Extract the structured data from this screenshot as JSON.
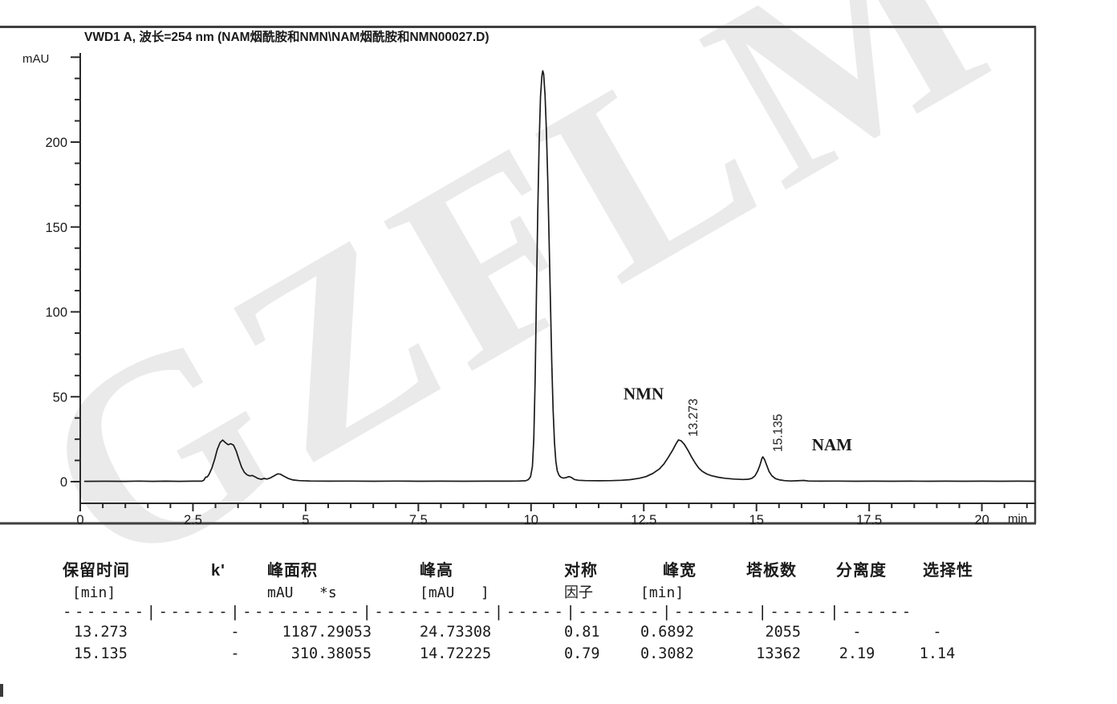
{
  "watermark": "GZFLM",
  "chart_data": {
    "type": "line",
    "title": "VWD1 A, 波长=254 nm (NAM烟酰胺和NMN\\NAM烟酰胺和NMN00027.D)",
    "ylabel": "mAU",
    "xlabel": "min",
    "x_axis": {
      "range": [
        0,
        21.2
      ],
      "minor_step": 0.5,
      "ticks": [
        {
          "v": 0,
          "label": "0"
        },
        {
          "v": 2.5,
          "label": "2.5"
        },
        {
          "v": 5,
          "label": "5"
        },
        {
          "v": 7.5,
          "label": "7.5"
        },
        {
          "v": 10,
          "label": "10"
        },
        {
          "v": 12.5,
          "label": "12.5"
        },
        {
          "v": 15,
          "label": "15"
        },
        {
          "v": 17.5,
          "label": "17.5"
        },
        {
          "v": 20,
          "label": "20"
        }
      ]
    },
    "y_axis": {
      "range": [
        0,
        250
      ],
      "minor_step": 12.5,
      "ticks": [
        {
          "v": 0,
          "label": "0"
        },
        {
          "v": 50,
          "label": "50"
        },
        {
          "v": 100,
          "label": "100"
        },
        {
          "v": 150,
          "label": "150"
        },
        {
          "v": 200,
          "label": "200"
        }
      ]
    },
    "peaks": [
      {
        "name": "NMN",
        "rt_min": 13.273,
        "height_mau": 24.73308
      },
      {
        "name": "NAM",
        "rt_min": 15.135,
        "height_mau": 14.72225
      },
      {
        "name": "solvent-front",
        "rt_min": 3.16,
        "height_mau": 24.5
      },
      {
        "name": "main-peak",
        "rt_min": 10.26,
        "height_mau": 242
      }
    ],
    "annotations": [
      {
        "text": "NMN",
        "t": 12.05,
        "mau": 48.5,
        "rotated": false,
        "style": "compound"
      },
      {
        "text": "13.273",
        "t": 13.69,
        "mau": 26.5,
        "rotated": true,
        "style": "rt"
      },
      {
        "text": "15.135",
        "t": 15.57,
        "mau": 17.5,
        "rotated": true,
        "style": "rt"
      },
      {
        "text": "NAM",
        "t": 16.23,
        "mau": 18.5,
        "rotated": false,
        "style": "compound"
      }
    ],
    "colors": {
      "trace": "#1a1a1a",
      "axis": "#2a2a2a",
      "border": "#3f3f3f",
      "compound_label": "#7a1420"
    },
    "trace": [
      [
        0.1,
        0.2
      ],
      [
        0.6,
        0.25
      ],
      [
        1.0,
        0.2
      ],
      [
        1.3,
        0.35
      ],
      [
        1.6,
        0.2
      ],
      [
        1.9,
        0.3
      ],
      [
        2.2,
        0.2
      ],
      [
        2.5,
        0.3
      ],
      [
        2.7,
        0.3
      ],
      [
        2.74,
        0.8
      ],
      [
        2.78,
        2.6
      ],
      [
        2.82,
        2.8
      ],
      [
        2.86,
        4.5
      ],
      [
        2.92,
        8
      ],
      [
        2.98,
        13
      ],
      [
        3.04,
        19
      ],
      [
        3.1,
        23
      ],
      [
        3.16,
        24.5
      ],
      [
        3.22,
        23
      ],
      [
        3.28,
        21.8
      ],
      [
        3.34,
        22.3
      ],
      [
        3.4,
        21.5
      ],
      [
        3.46,
        18
      ],
      [
        3.52,
        13
      ],
      [
        3.58,
        8.5
      ],
      [
        3.64,
        5.5
      ],
      [
        3.7,
        4
      ],
      [
        3.76,
        3.4
      ],
      [
        3.82,
        3.6
      ],
      [
        3.88,
        2.8
      ],
      [
        3.95,
        1.8
      ],
      [
        4.02,
        1.4
      ],
      [
        4.08,
        1.9
      ],
      [
        4.14,
        1.5
      ],
      [
        4.22,
        2.2
      ],
      [
        4.3,
        3.4
      ],
      [
        4.38,
        4.6
      ],
      [
        4.44,
        4.4
      ],
      [
        4.52,
        3.2
      ],
      [
        4.62,
        1.8
      ],
      [
        4.72,
        1.0
      ],
      [
        4.85,
        0.6
      ],
      [
        5.1,
        0.4
      ],
      [
        5.5,
        0.3
      ],
      [
        6.0,
        0.35
      ],
      [
        6.5,
        0.25
      ],
      [
        7.0,
        0.35
      ],
      [
        7.5,
        0.25
      ],
      [
        8.0,
        0.3
      ],
      [
        8.5,
        0.25
      ],
      [
        9.0,
        0.3
      ],
      [
        9.4,
        0.3
      ],
      [
        9.7,
        0.35
      ],
      [
        9.88,
        0.5
      ],
      [
        9.94,
        1.2
      ],
      [
        9.99,
        3
      ],
      [
        10.03,
        9
      ],
      [
        10.06,
        25
      ],
      [
        10.09,
        60
      ],
      [
        10.12,
        110
      ],
      [
        10.15,
        160
      ],
      [
        10.18,
        200
      ],
      [
        10.21,
        227
      ],
      [
        10.24,
        239
      ],
      [
        10.26,
        242
      ],
      [
        10.28,
        240
      ],
      [
        10.31,
        228
      ],
      [
        10.34,
        207
      ],
      [
        10.37,
        178
      ],
      [
        10.4,
        142
      ],
      [
        10.43,
        105
      ],
      [
        10.46,
        70
      ],
      [
        10.49,
        42
      ],
      [
        10.52,
        23
      ],
      [
        10.55,
        12
      ],
      [
        10.58,
        6.5
      ],
      [
        10.62,
        3.8
      ],
      [
        10.66,
        2.6
      ],
      [
        10.72,
        2.1
      ],
      [
        10.78,
        2.4
      ],
      [
        10.84,
        3.0
      ],
      [
        10.9,
        2.4
      ],
      [
        10.96,
        1.3
      ],
      [
        11.05,
        0.8
      ],
      [
        11.2,
        0.6
      ],
      [
        11.5,
        0.5
      ],
      [
        11.8,
        0.6
      ],
      [
        12.0,
        0.8
      ],
      [
        12.2,
        1.2
      ],
      [
        12.4,
        2.0
      ],
      [
        12.55,
        3.0
      ],
      [
        12.7,
        4.8
      ],
      [
        12.85,
        7.5
      ],
      [
        12.95,
        10.5
      ],
      [
        13.05,
        14.5
      ],
      [
        13.15,
        19
      ],
      [
        13.22,
        22.5
      ],
      [
        13.27,
        24.6
      ],
      [
        13.33,
        24.0
      ],
      [
        13.4,
        22
      ],
      [
        13.48,
        18.5
      ],
      [
        13.56,
        14.5
      ],
      [
        13.64,
        11
      ],
      [
        13.72,
        8
      ],
      [
        13.8,
        6
      ],
      [
        13.9,
        4.5
      ],
      [
        14.0,
        3.5
      ],
      [
        14.15,
        2.6
      ],
      [
        14.3,
        2.0
      ],
      [
        14.5,
        1.5
      ],
      [
        14.7,
        1.3
      ],
      [
        14.82,
        1.4
      ],
      [
        14.9,
        2.0
      ],
      [
        14.97,
        3.5
      ],
      [
        15.03,
        6.5
      ],
      [
        15.08,
        10
      ],
      [
        15.12,
        13.5
      ],
      [
        15.14,
        14.6
      ],
      [
        15.18,
        13
      ],
      [
        15.23,
        9.5
      ],
      [
        15.28,
        6
      ],
      [
        15.34,
        3.5
      ],
      [
        15.42,
        1.8
      ],
      [
        15.52,
        1.0
      ],
      [
        15.62,
        0.6
      ],
      [
        15.75,
        0.4
      ],
      [
        15.9,
        0.5
      ],
      [
        16.05,
        0.7
      ],
      [
        16.15,
        0.4
      ],
      [
        16.4,
        0.3
      ],
      [
        16.8,
        0.35
      ],
      [
        17.2,
        0.25
      ],
      [
        17.6,
        0.3
      ],
      [
        18.0,
        0.25
      ],
      [
        18.4,
        0.3
      ],
      [
        18.8,
        0.25
      ],
      [
        19.2,
        0.3
      ],
      [
        19.6,
        0.25
      ],
      [
        20.0,
        0.3
      ],
      [
        20.4,
        0.25
      ],
      [
        20.8,
        0.3
      ],
      [
        21.18,
        0.25
      ]
    ]
  },
  "table": {
    "headers_row1": [
      "保留时间",
      "k'",
      "峰面积",
      "峰高",
      "对称",
      "峰宽",
      "塔板数",
      "分离度",
      "选择性"
    ],
    "headers_row2": [
      "[min]",
      "",
      "mAU   *s",
      "[mAU   ]",
      "因子",
      "[min]",
      "",
      "",
      ""
    ],
    "separator": "-------|------|----------|----------|-----|-------|-------|-----|------",
    "rows": [
      [
        "13.273",
        "-",
        "1187.29053",
        "24.73308",
        "0.81",
        "0.6892",
        "2055",
        "-",
        "-"
      ],
      [
        "15.135",
        "-",
        "310.38055",
        "14.72225",
        "0.79",
        "0.3082",
        "13362",
        "2.19",
        "1.14"
      ]
    ]
  }
}
